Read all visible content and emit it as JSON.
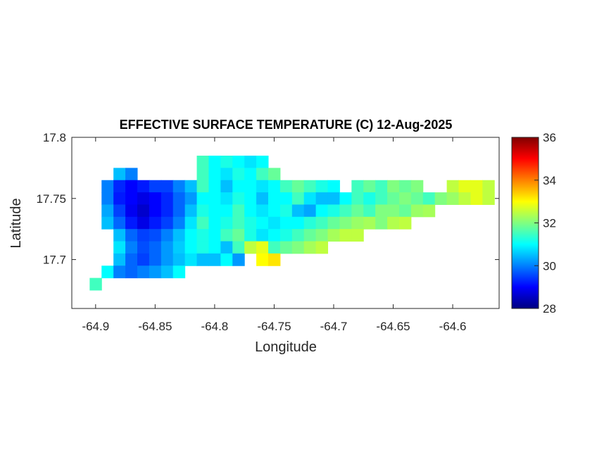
{
  "chart_data": {
    "type": "heatmap",
    "title": "EFFECTIVE SURFACE TEMPERATURE (C) 12-Aug-2025",
    "xlabel": "Longitude",
    "ylabel": "Latitude",
    "xlim": [
      -64.92,
      -64.561
    ],
    "ylim": [
      17.66,
      17.8
    ],
    "xticks": [
      -64.9,
      -64.85,
      -64.8,
      -64.75,
      -64.7,
      -64.65,
      -64.6
    ],
    "xtick_labels": [
      "-64.9",
      "-64.85",
      "-64.8",
      "-64.75",
      "-64.7",
      "-64.65",
      "-64.6"
    ],
    "yticks": [
      17.7,
      17.75,
      17.8
    ],
    "ytick_labels": [
      "17.7",
      "17.75",
      "17.8"
    ],
    "colormap": "jet",
    "colorbar": {
      "clim": [
        28,
        36
      ],
      "ticks": [
        28,
        30,
        32,
        34,
        36
      ],
      "tick_labels": [
        "28",
        "30",
        "32",
        "34",
        "36"
      ],
      "placement": "right"
    },
    "grid": false,
    "cell_size_deg": 0.01,
    "rows": [
      {
        "lat": 17.78,
        "start_lon": -64.81,
        "values": [
          31.5,
          31,
          31.2,
          31,
          30.8,
          31
        ]
      },
      {
        "lat": 17.77,
        "start_lon": -64.88,
        "values": [
          30.5,
          30,
          null,
          null,
          null,
          null,
          null,
          31.5,
          31,
          30.8,
          31.2,
          31,
          31.5,
          31.8
        ]
      },
      {
        "lat": 17.76,
        "start_lon": -64.89,
        "values": [
          30,
          29.3,
          29,
          29.2,
          29.5,
          29.5,
          30,
          30.5,
          31.5,
          31,
          30.5,
          31,
          31,
          30.8,
          31,
          31.5,
          31.8,
          31.5,
          31.2,
          31,
          null,
          31.5,
          31.8,
          31.5,
          32,
          31.8,
          32,
          null,
          null,
          32.5,
          32.8,
          32.8,
          32.5
        ]
      },
      {
        "lat": 17.75,
        "start_lon": -64.89,
        "values": [
          30,
          29.2,
          29,
          28.8,
          29,
          29.3,
          29.8,
          30.2,
          31,
          31,
          30.8,
          31.2,
          31,
          30.5,
          31,
          31,
          31.5,
          30.8,
          30.5,
          30.5,
          31,
          31.5,
          31.2,
          31.5,
          31.8,
          32,
          31.8,
          31.5,
          32,
          32.2,
          32.5,
          32.8,
          32.5
        ]
      },
      {
        "lat": 17.74,
        "start_lon": -64.89,
        "values": [
          30.3,
          29.5,
          28.9,
          28.6,
          29,
          29.3,
          29.8,
          30.5,
          31.2,
          31,
          31,
          31.5,
          31,
          30.8,
          31,
          31.2,
          30.5,
          30.3,
          31,
          31.2,
          31.5,
          31.8,
          31.5,
          32,
          32,
          31.8,
          32.2,
          32.3
        ]
      },
      {
        "lat": 17.73,
        "start_lon": -64.89,
        "values": [
          30.5,
          29.8,
          29.2,
          28.8,
          29.2,
          29.5,
          30,
          30.8,
          31.5,
          31,
          31.2,
          31.5,
          31.2,
          31,
          30.8,
          31,
          31,
          31.3,
          31.5,
          31.8,
          32,
          32.2,
          32.3,
          32,
          32.4,
          32.5
        ]
      },
      {
        "lat": 17.72,
        "start_lon": -64.88,
        "values": [
          30.5,
          29.8,
          29.5,
          29.6,
          30,
          30.5,
          31,
          31.2,
          31,
          31.5,
          31.8,
          31.2,
          30.8,
          31,
          31.2,
          31.5,
          31.8,
          32,
          32.3,
          32.5,
          32.5
        ]
      },
      {
        "lat": 17.71,
        "start_lon": -64.88,
        "values": [
          30.8,
          30,
          29.6,
          29.8,
          30.2,
          30.6,
          31,
          31.2,
          31,
          30.5,
          31.5,
          32.5,
          32.8,
          31.5,
          31.8,
          32,
          32.3,
          32.5
        ]
      },
      {
        "lat": 17.7,
        "start_lon": -64.88,
        "values": [
          30.5,
          29.8,
          29.5,
          29.8,
          30.2,
          30.5,
          30.8,
          30.5,
          30.5,
          31,
          30.2,
          null,
          33,
          33.2
        ]
      },
      {
        "lat": 17.69,
        "start_lon": -64.89,
        "values": [
          31,
          30,
          29.8,
          30,
          30.2,
          30.5,
          31
        ]
      },
      {
        "lat": 17.68,
        "start_lon": -64.9,
        "values": [
          31.5
        ]
      }
    ]
  }
}
